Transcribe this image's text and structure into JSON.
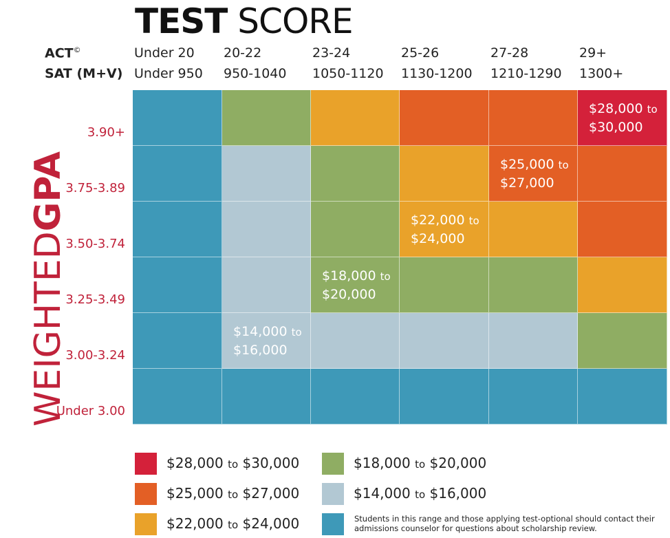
{
  "header": {
    "title_bold": "TEST",
    "title_rest": "SCORE",
    "vertical_light": "WEIGHTED",
    "vertical_bold": "GPA"
  },
  "colors": {
    "red": "#d4213a",
    "orange": "#e35f25",
    "yellow": "#e9a22a",
    "green": "#8fad63",
    "gray": "#b2c8d3",
    "blue": "#3e99b8"
  },
  "scores": {
    "act_label": "ACT",
    "act_mark": "©",
    "sat_label": "SAT (M+V)",
    "columns": [
      {
        "act": "Under 20",
        "sat": "Under 950"
      },
      {
        "act": "20-22",
        "sat": "950-1040"
      },
      {
        "act": "23-24",
        "sat": "1050-1120"
      },
      {
        "act": "25-26",
        "sat": "1130-1200"
      },
      {
        "act": "27-28",
        "sat": "1210-1290"
      },
      {
        "act": "29+",
        "sat": "1300+"
      }
    ]
  },
  "rows": [
    {
      "label": "3.90+",
      "cells": [
        "blue",
        "green",
        "yellow",
        "orange",
        "orange",
        "red"
      ]
    },
    {
      "label": "3.75-3.89",
      "cells": [
        "blue",
        "gray",
        "green",
        "yellow",
        "orange",
        "orange"
      ]
    },
    {
      "label": "3.50-3.74",
      "cells": [
        "blue",
        "gray",
        "green",
        "yellow",
        "yellow",
        "orange"
      ]
    },
    {
      "label": "3.25-3.49",
      "cells": [
        "blue",
        "gray",
        "green",
        "green",
        "green",
        "yellow"
      ]
    },
    {
      "label": "3.00-3.24",
      "cells": [
        "blue",
        "gray",
        "gray",
        "gray",
        "gray",
        "green"
      ]
    },
    {
      "label": "Under 3.00",
      "cells": [
        "blue",
        "blue",
        "blue",
        "blue",
        "blue",
        "blue"
      ]
    }
  ],
  "cell_labels": [
    {
      "row": 0,
      "col": 5,
      "low": "$28,000",
      "to": "to",
      "high": "$30,000"
    },
    {
      "row": 1,
      "col": 4,
      "low": "$25,000",
      "to": "to",
      "high": "$27,000"
    },
    {
      "row": 2,
      "col": 3,
      "low": "$22,000",
      "to": "to",
      "high": "$24,000"
    },
    {
      "row": 3,
      "col": 2,
      "low": "$18,000",
      "to": "to",
      "high": "$20,000"
    },
    {
      "row": 4,
      "col": 1,
      "low": "$14,000",
      "to": "to",
      "high": "$16,000"
    }
  ],
  "legend": [
    {
      "color": "red",
      "low": "$28,000",
      "to": "to",
      "high": "$30,000"
    },
    {
      "color": "orange",
      "low": "$25,000",
      "to": "to",
      "high": "$27,000"
    },
    {
      "color": "yellow",
      "low": "$22,000",
      "to": "to",
      "high": "$24,000"
    },
    {
      "color": "green",
      "low": "$18,000",
      "to": "to",
      "high": "$20,000"
    },
    {
      "color": "gray",
      "low": "$14,000",
      "to": "to",
      "high": "$16,000"
    },
    {
      "color": "blue",
      "note": "Students in this range and those applying test-optional should contact their admissions counselor for questions about scholarship review."
    }
  ]
}
